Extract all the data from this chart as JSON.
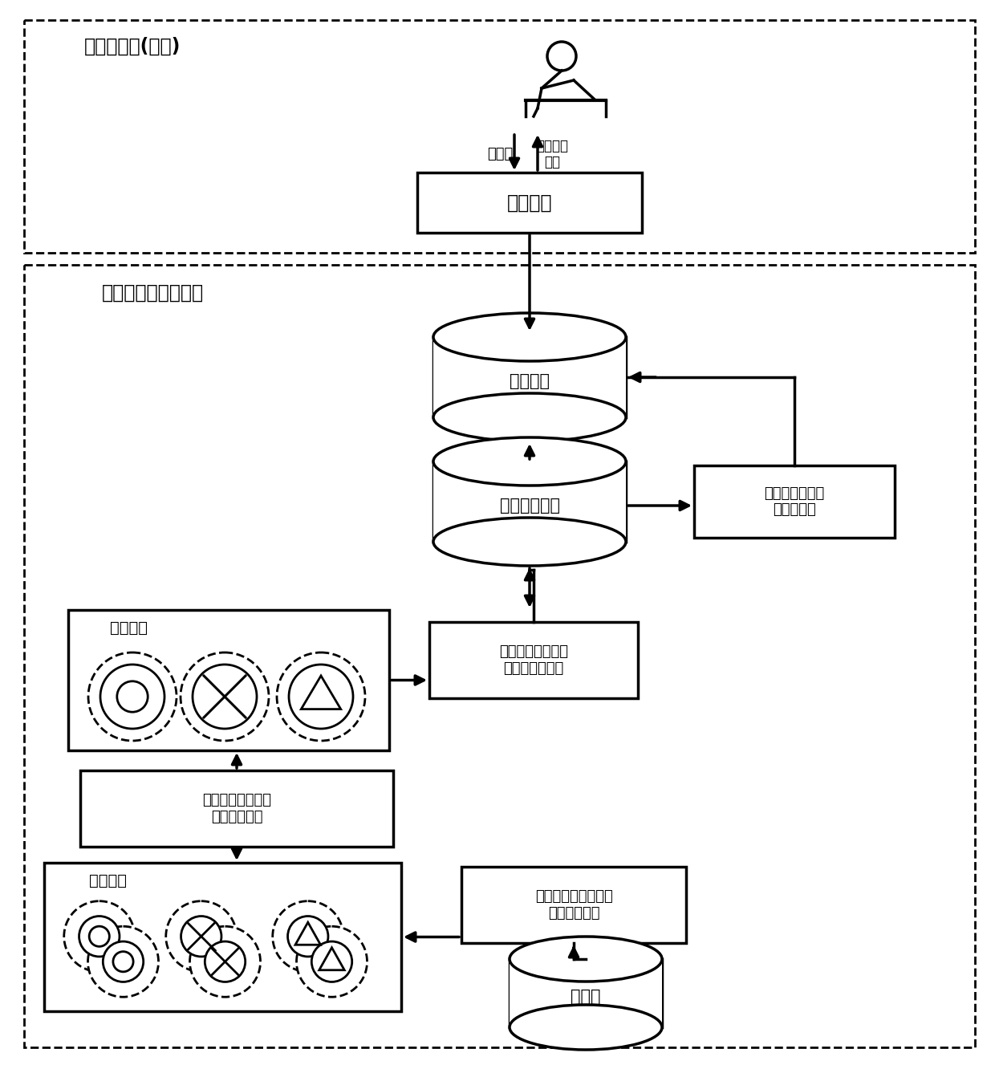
{
  "online_label": "关键词查询(在线)",
  "offline_label": "数据预处理（离线）",
  "query_process_label": "查询处理",
  "topic_index_label": "主题索引",
  "topic_cluster_unit_label": "主题聚簇单元",
  "index_extract_label": "基于关联规则的\n索引图选取",
  "horizontal_group_label": "基于元组相似性关\n联图的水平分组",
  "genetic_opt_label": "基于遗传算法的表\n连接顺序优化",
  "vertical_group_label": "基于改进遗传聚簇算\n法的垂直分组",
  "database_label": "数据库",
  "keyword_label": "关键字",
  "topic_unit_input_label": "主题聚簇\n单元",
  "topic_cluster_upper_label": "主题聚簇",
  "topic_cluster_lower_label": "主题聚簇",
  "bg_color": "#ffffff"
}
